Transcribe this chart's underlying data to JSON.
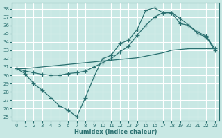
{
  "xlabel": "Humidex (Indice chaleur)",
  "background_color": "#c8e8e4",
  "grid_color": "#ffffff",
  "line_color": "#2a7070",
  "xlim": [
    -0.5,
    23.5
  ],
  "ylim": [
    24.5,
    38.7
  ],
  "yticks": [
    25,
    26,
    27,
    28,
    29,
    30,
    31,
    32,
    33,
    34,
    35,
    36,
    37,
    38
  ],
  "xticks": [
    0,
    1,
    2,
    3,
    4,
    5,
    6,
    7,
    8,
    9,
    10,
    11,
    12,
    13,
    14,
    15,
    16,
    17,
    18,
    19,
    20,
    21,
    22,
    23
  ],
  "line1_x": [
    0,
    1,
    2,
    3,
    4,
    5,
    6,
    7,
    8,
    9,
    10,
    11,
    12,
    13,
    14,
    15,
    16,
    17,
    18,
    19,
    20,
    21,
    22,
    23
  ],
  "line1_y": [
    30.8,
    30.2,
    29.0,
    28.2,
    27.3,
    26.3,
    25.8,
    25.0,
    27.3,
    29.8,
    32.0,
    32.4,
    33.8,
    34.2,
    35.5,
    37.8,
    38.1,
    37.5,
    37.5,
    36.2,
    36.0,
    35.0,
    34.6,
    33.0
  ],
  "line2_x": [
    0,
    1,
    2,
    3,
    4,
    5,
    6,
    7,
    8,
    9,
    10,
    11,
    12,
    13,
    14,
    15,
    16,
    17,
    18,
    19,
    20,
    21,
    22,
    23
  ],
  "line2_y": [
    30.8,
    30.5,
    30.3,
    30.1,
    30.0,
    30.0,
    30.2,
    30.3,
    30.5,
    31.0,
    31.5,
    32.0,
    32.8,
    33.5,
    34.8,
    36.0,
    37.0,
    37.5,
    37.5,
    36.8,
    36.0,
    35.2,
    34.7,
    33.2
  ],
  "line3_x": [
    0,
    1,
    2,
    3,
    4,
    5,
    6,
    7,
    8,
    9,
    10,
    11,
    12,
    13,
    14,
    15,
    16,
    17,
    18,
    19,
    20,
    21,
    22,
    23
  ],
  "line3_y": [
    30.8,
    30.8,
    30.9,
    31.0,
    31.1,
    31.2,
    31.3,
    31.4,
    31.5,
    31.6,
    31.7,
    31.8,
    31.9,
    32.0,
    32.1,
    32.3,
    32.5,
    32.7,
    33.0,
    33.1,
    33.2,
    33.2,
    33.2,
    33.2
  ],
  "markersize": 3,
  "linewidth": 0.9
}
